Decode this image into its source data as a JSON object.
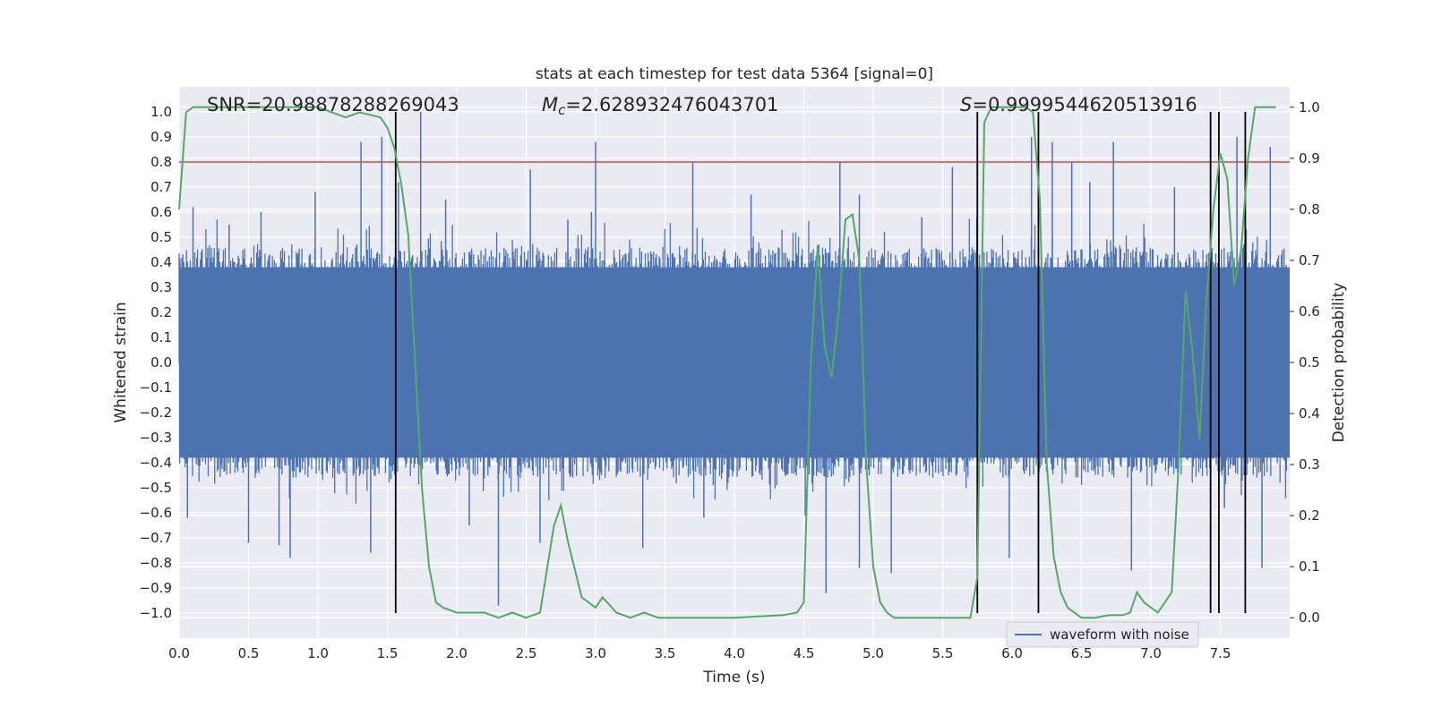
{
  "chart_data": {
    "type": "line",
    "title": "stats at each timestep for test data 5364 [signal=0]",
    "xlabel": "Time (s)",
    "ylabel": "Whitened strain",
    "y2label": "Detection probability",
    "xlim": [
      0.0,
      8.0
    ],
    "ylim": [
      -1.1,
      1.1
    ],
    "y2lim": [
      -0.04,
      1.04
    ],
    "xticks": [
      0.0,
      0.5,
      1.0,
      1.5,
      2.0,
      2.5,
      3.0,
      3.5,
      4.0,
      4.5,
      5.0,
      5.5,
      6.0,
      6.5,
      7.0,
      7.5
    ],
    "xtick_labels": [
      "0.0",
      "0.5",
      "1.0",
      "1.5",
      "2.0",
      "2.5",
      "3.0",
      "3.5",
      "4.0",
      "4.5",
      "5.0",
      "5.5",
      "6.0",
      "6.5",
      "7.0",
      "7.5"
    ],
    "yticks": [
      1.0,
      0.9,
      0.8,
      0.7,
      0.6,
      0.5,
      0.4,
      0.3,
      0.2,
      0.1,
      0.0,
      -0.1,
      -0.2,
      -0.3,
      -0.4,
      -0.5,
      -0.6,
      -0.7,
      -0.8,
      -0.9,
      -1.0
    ],
    "ytick_labels": [
      "1.0",
      "0.9",
      "0.8",
      "0.7",
      "0.6",
      "0.5",
      "0.4",
      "0.3",
      "0.2",
      "0.1",
      "0.0",
      "−0.1",
      "−0.2",
      "−0.3",
      "−0.4",
      "−0.5",
      "−0.6",
      "−0.7",
      "−0.8",
      "−0.9",
      "−1.0"
    ],
    "y2ticks": [
      1.0,
      0.9,
      0.8,
      0.7,
      0.6,
      0.5,
      0.4,
      0.3,
      0.2,
      0.1,
      0.0
    ],
    "y2tick_labels": [
      "1.0",
      "0.9",
      "0.8",
      "0.7",
      "0.6",
      "0.5",
      "0.4",
      "0.3",
      "0.2",
      "0.1",
      "0.0"
    ],
    "annotations": {
      "snr": "SNR=20.98878288269043",
      "mc_symbol": "M",
      "mc_sub": "c",
      "mc_value": "=2.628932476043701",
      "s_symbol": "S",
      "s_value": "=0.9999544620513916"
    },
    "threshold": {
      "y": 0.8,
      "color": "#c44e52"
    },
    "detections_x": [
      1.56,
      5.75,
      6.19,
      7.43,
      7.49,
      7.68
    ],
    "series": [
      {
        "name": "waveform with noise",
        "axis": "left",
        "color": "#4c72b0",
        "envelope_note": "whitened strain, dense noise mostly within +/-0.4 with spikes to about +/-1.0",
        "spikes": [
          [
            0.06,
            -0.62
          ],
          [
            0.1,
            0.62
          ],
          [
            0.27,
            0.32
          ],
          [
            0.36,
            0.55
          ],
          [
            0.5,
            -0.72
          ],
          [
            0.59,
            0.6
          ],
          [
            0.72,
            -0.73
          ],
          [
            0.8,
            -0.78
          ],
          [
            0.98,
            0.68
          ],
          [
            1.28,
            0.47
          ],
          [
            1.31,
            0.88
          ],
          [
            1.38,
            -0.76
          ],
          [
            1.46,
            0.9
          ],
          [
            1.58,
            0.72
          ],
          [
            1.74,
            1.0
          ],
          [
            1.92,
            0.65
          ],
          [
            2.09,
            -0.65
          ],
          [
            2.3,
            -0.97
          ],
          [
            2.53,
            0.77
          ],
          [
            2.6,
            -0.72
          ],
          [
            2.8,
            0.57
          ],
          [
            2.97,
            0.6
          ],
          [
            3.0,
            0.88
          ],
          [
            3.34,
            -0.74
          ],
          [
            3.7,
            0.8
          ],
          [
            3.78,
            -0.62
          ],
          [
            4.12,
            0.67
          ],
          [
            4.51,
            -0.61
          ],
          [
            4.66,
            -0.92
          ],
          [
            4.76,
            0.8
          ],
          [
            4.9,
            -0.82
          ],
          [
            4.9,
            0.67
          ],
          [
            5.13,
            -0.84
          ],
          [
            5.35,
            0.58
          ],
          [
            5.57,
            0.78
          ],
          [
            5.98,
            -0.78
          ],
          [
            6.14,
            0.9
          ],
          [
            6.19,
            -0.82
          ],
          [
            6.29,
            0.88
          ],
          [
            6.43,
            0.8
          ],
          [
            6.56,
            0.72
          ],
          [
            6.73,
            0.88
          ],
          [
            6.86,
            -0.83
          ],
          [
            7.17,
            0.7
          ],
          [
            7.43,
            0.93
          ],
          [
            7.53,
            -0.58
          ],
          [
            7.62,
            0.9
          ],
          [
            7.8,
            -0.82
          ],
          [
            7.86,
            0.86
          ]
        ]
      },
      {
        "name": "",
        "axis": "right",
        "color": "#55a868",
        "x": [
          0.0,
          0.05,
          0.1,
          0.2,
          0.5,
          1.0,
          1.1,
          1.2,
          1.3,
          1.45,
          1.5,
          1.55,
          1.6,
          1.65,
          1.7,
          1.75,
          1.8,
          1.85,
          1.9,
          2.0,
          2.2,
          2.3,
          2.4,
          2.5,
          2.6,
          2.7,
          2.75,
          2.8,
          2.9,
          3.0,
          3.05,
          3.15,
          3.25,
          3.35,
          3.45,
          3.5,
          4.0,
          4.35,
          4.45,
          4.5,
          4.55,
          4.6,
          4.65,
          4.7,
          4.75,
          4.8,
          4.85,
          4.9,
          4.95,
          5.0,
          5.05,
          5.1,
          5.15,
          5.2,
          5.3,
          5.5,
          5.6,
          5.65,
          5.7,
          5.75,
          5.8,
          5.85,
          5.9,
          6.0,
          6.1,
          6.15,
          6.2,
          6.25,
          6.3,
          6.35,
          6.4,
          6.5,
          6.6,
          6.7,
          6.8,
          6.85,
          6.9,
          6.95,
          7.05,
          7.15,
          7.2,
          7.25,
          7.3,
          7.35,
          7.4,
          7.45,
          7.5,
          7.55,
          7.6,
          7.65,
          7.7,
          7.75,
          7.8,
          7.9
        ],
        "y": [
          0.8,
          0.99,
          1.0,
          1.0,
          1.0,
          1.0,
          0.99,
          0.98,
          0.99,
          0.98,
          0.96,
          0.92,
          0.85,
          0.75,
          0.5,
          0.25,
          0.1,
          0.03,
          0.02,
          0.01,
          0.01,
          0.0,
          0.01,
          0.0,
          0.01,
          0.18,
          0.22,
          0.15,
          0.04,
          0.02,
          0.04,
          0.01,
          0.0,
          0.01,
          0.0,
          0.0,
          0.0,
          0.005,
          0.01,
          0.03,
          0.5,
          0.73,
          0.53,
          0.47,
          0.6,
          0.78,
          0.79,
          0.7,
          0.3,
          0.1,
          0.03,
          0.01,
          0.0,
          0.0,
          0.0,
          0.0,
          0.0,
          0.0,
          0.0,
          0.08,
          0.97,
          1.0,
          1.0,
          1.0,
          1.0,
          0.99,
          0.82,
          0.3,
          0.12,
          0.05,
          0.02,
          0.0,
          0.0,
          0.005,
          0.005,
          0.01,
          0.05,
          0.03,
          0.01,
          0.05,
          0.3,
          0.64,
          0.52,
          0.35,
          0.62,
          0.8,
          0.91,
          0.86,
          0.65,
          0.72,
          0.9,
          1.0,
          1.0,
          1.0
        ]
      }
    ],
    "legend": {
      "loc": "lower right",
      "entries": [
        "waveform with noise"
      ]
    },
    "grid": true
  }
}
